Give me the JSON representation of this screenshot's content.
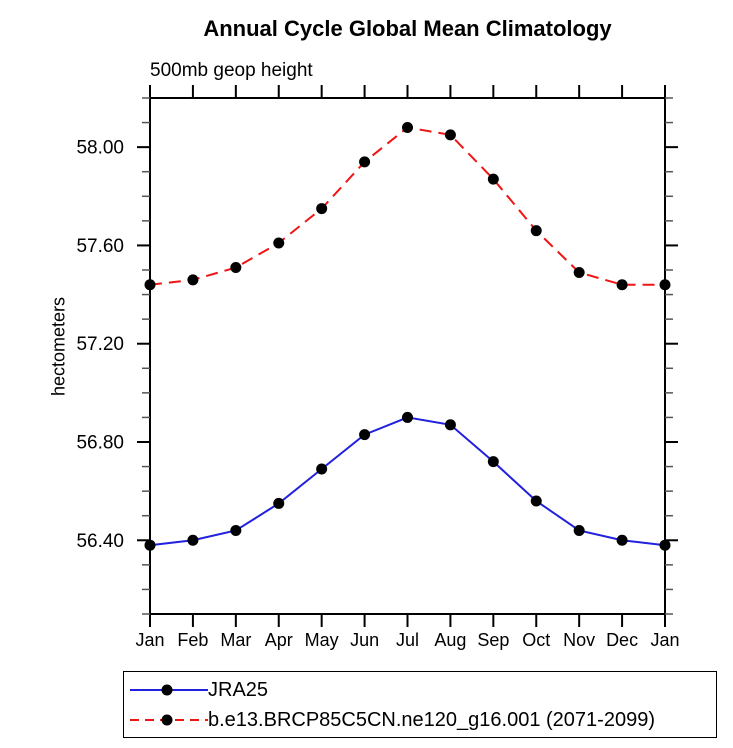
{
  "chart_data": {
    "type": "line",
    "title": "Annual Cycle Global Mean Climatology",
    "subtitle": "500mb geop height",
    "ylabel": "hectometers",
    "xlabel": "",
    "categories": [
      "Jan",
      "Feb",
      "Mar",
      "Apr",
      "May",
      "Jun",
      "Jul",
      "Aug",
      "Sep",
      "Oct",
      "Nov",
      "Dec",
      "Jan"
    ],
    "series": [
      {
        "name": "JRA25",
        "color": "#2020dd",
        "line_style": "solid",
        "marker": "black-circle",
        "values": [
          56.38,
          56.4,
          56.44,
          56.55,
          56.69,
          56.83,
          56.9,
          56.87,
          56.72,
          56.56,
          56.44,
          56.4,
          56.38
        ]
      },
      {
        "name": "b.e13.BRCP85C5CN.ne120_g16.001 (2071-2099)",
        "color": "#f01414",
        "line_style": "dashed",
        "marker": "black-circle",
        "values": [
          57.44,
          57.46,
          57.51,
          57.61,
          57.75,
          57.94,
          58.08,
          58.05,
          57.87,
          57.66,
          57.49,
          57.44,
          57.44
        ]
      }
    ],
    "ylim": [
      56.1,
      58.2
    ],
    "ytick_major": [
      56.4,
      56.8,
      57.2,
      57.6,
      58.0
    ],
    "ytick_labels": [
      "56.40",
      "56.80",
      "57.20",
      "57.60",
      "58.00"
    ],
    "ytick_minor_step": 0.1,
    "grid": false,
    "legend_position": "bottom-boxed",
    "marker_color": "#000000",
    "axis_color": "#000000"
  }
}
